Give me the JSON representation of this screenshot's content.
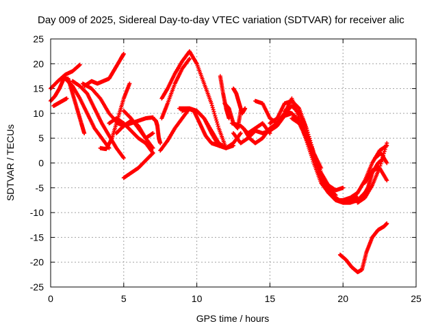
{
  "chart_data": {
    "type": "scatter",
    "title": "Day 009 of 2025, Sidereal Day-to-day VTEC variation (SDTVAR) for receiver alic",
    "xlabel": "GPS time / hours",
    "ylabel": "SDTVAR / TECUs",
    "xlim": [
      0,
      25
    ],
    "ylim": [
      -25,
      25
    ],
    "xticks": [
      0,
      5,
      10,
      15,
      20,
      25
    ],
    "yticks": [
      -25,
      -20,
      -15,
      -10,
      -5,
      0,
      5,
      10,
      15,
      20,
      25
    ],
    "grid": true,
    "marker": "+",
    "color": "#ff0000",
    "series": [
      {
        "x": [
          0.0,
          0.3,
          0.6,
          0.9,
          1.2,
          1.5,
          1.8,
          2.1,
          2.3
        ],
        "y": [
          12.5,
          13.5,
          15.0,
          17.0,
          17.0,
          14.0,
          11.0,
          8.0,
          6.0
        ]
      },
      {
        "x": [
          0.0,
          0.5,
          1.0,
          1.5,
          2.0
        ],
        "y": [
          15.0,
          16.5,
          17.8,
          18.5,
          19.8
        ]
      },
      {
        "x": [
          0.2,
          0.5,
          0.8,
          1.1
        ],
        "y": [
          11.5,
          12.0,
          12.5,
          13.0
        ]
      },
      {
        "x": [
          1.0,
          1.5,
          2.0,
          2.5,
          3.0,
          3.5,
          4.0
        ],
        "y": [
          17.0,
          15.5,
          13.0,
          10.0,
          7.0,
          5.0,
          3.0
        ]
      },
      {
        "x": [
          1.5,
          2.0,
          2.5,
          3.0,
          3.5,
          4.0,
          4.5,
          5.0
        ],
        "y": [
          16.5,
          15.5,
          14.0,
          11.0,
          8.0,
          5.5,
          3.0,
          1.0
        ]
      },
      {
        "x": [
          2.2,
          2.8,
          3.4,
          4.0,
          4.6,
          5.0,
          5.5,
          6.0,
          6.5,
          7.0
        ],
        "y": [
          16.0,
          15.0,
          13.0,
          10.0,
          8.0,
          7.5,
          8.0,
          8.5,
          9.0,
          9.2
        ]
      },
      {
        "x": [
          2.3,
          2.8,
          3.2,
          3.6,
          4.0,
          4.4,
          4.8,
          5.0
        ],
        "y": [
          15.5,
          16.5,
          16.0,
          16.5,
          17.0,
          19.0,
          21.0,
          22.0
        ]
      },
      {
        "x": [
          3.4,
          3.8,
          4.2,
          4.6,
          5.0,
          5.4
        ],
        "y": [
          3.0,
          2.8,
          5.0,
          9.0,
          13.0,
          16.0
        ]
      },
      {
        "x": [
          4.0,
          4.5,
          5.0,
          5.5,
          6.0,
          6.5,
          7.0
        ],
        "y": [
          8.0,
          9.0,
          8.0,
          6.5,
          5.0,
          4.0,
          2.0
        ]
      },
      {
        "x": [
          4.5,
          5.0,
          5.5,
          6.0,
          6.5,
          7.0
        ],
        "y": [
          6.0,
          7.5,
          8.5,
          7.5,
          5.0,
          3.0
        ]
      },
      {
        "x": [
          5.0,
          5.5,
          6.0,
          6.5,
          7.0
        ],
        "y": [
          -3.0,
          -2.0,
          -1.0,
          0.5,
          2.0
        ]
      },
      {
        "x": [
          5.0,
          5.5,
          6.0,
          6.5,
          7.0
        ],
        "y": [
          10.5,
          9.0,
          7.0,
          5.0,
          6.0
        ]
      },
      {
        "x": [
          7.0,
          7.2,
          7.3,
          7.4,
          7.5
        ],
        "y": [
          9.0,
          8.5,
          7.5,
          5.0,
          4.0
        ]
      },
      {
        "x": [
          7.5,
          8.0,
          8.5,
          9.0,
          9.5,
          10.0,
          10.5,
          11.0,
          11.5,
          12.0,
          12.5,
          13.0
        ],
        "y": [
          2.5,
          4.5,
          7.0,
          9.0,
          11.0,
          10.5,
          9.0,
          6.5,
          4.0,
          3.0,
          4.0,
          6.0
        ]
      },
      {
        "x": [
          7.6,
          8.0,
          8.5,
          9.0,
          9.5,
          10.0,
          10.5,
          11.0,
          11.5,
          12.0
        ],
        "y": [
          13.0,
          15.0,
          18.0,
          20.5,
          22.5,
          20.0,
          16.0,
          12.0,
          7.0,
          3.0
        ]
      },
      {
        "x": [
          7.6,
          8.0,
          8.5,
          9.0,
          9.5
        ],
        "y": [
          9.0,
          12.0,
          16.0,
          19.0,
          21.0
        ]
      },
      {
        "x": [
          8.8,
          9.5,
          10.0,
          10.5,
          11.0,
          11.5,
          12.0,
          12.5
        ],
        "y": [
          11.0,
          11.0,
          10.5,
          9.0,
          6.0,
          3.5,
          3.0,
          3.5
        ]
      },
      {
        "x": [
          9.0,
          9.4,
          9.8,
          10.2,
          10.6,
          11.0,
          11.5,
          12.0
        ],
        "y": [
          10.5,
          11.0,
          10.5,
          8.0,
          5.5,
          4.0,
          3.5,
          3.0
        ]
      },
      {
        "x": [
          11.6,
          11.8,
          12.0,
          12.2
        ],
        "y": [
          17.5,
          14.0,
          11.0,
          9.0
        ]
      },
      {
        "x": [
          11.9,
          12.2,
          12.5,
          12.8,
          13.0
        ],
        "y": [
          12.0,
          11.0,
          8.0,
          7.0,
          10.5
        ]
      },
      {
        "x": [
          12.5,
          12.7,
          12.9,
          13.1,
          13.3
        ],
        "y": [
          15.0,
          14.0,
          12.0,
          10.0,
          11.0
        ]
      },
      {
        "x": [
          12.5,
          13.0,
          13.5,
          14.0,
          14.5,
          15.0,
          15.5,
          16.0,
          16.5
        ],
        "y": [
          6.0,
          4.0,
          5.0,
          6.5,
          6.0,
          6.5,
          7.5,
          9.5,
          10.0
        ]
      },
      {
        "x": [
          12.4,
          13.0,
          13.5,
          14.0,
          14.5,
          15.0
        ],
        "y": [
          8.0,
          7.5,
          6.0,
          7.0,
          8.0,
          6.0
        ]
      },
      {
        "x": [
          13.2,
          13.6,
          14.0,
          14.5,
          15.0,
          15.5,
          16.0,
          16.5,
          17.0,
          17.5,
          18.0,
          18.5
        ],
        "y": [
          7.0,
          5.0,
          4.0,
          5.0,
          7.0,
          8.0,
          10.0,
          11.5,
          10.0,
          6.0,
          2.0,
          -1.0
        ]
      },
      {
        "x": [
          14.0,
          14.5,
          15.0,
          15.5,
          16.0,
          16.5,
          17.0,
          17.5,
          18.0,
          18.5,
          19.0,
          19.5
        ],
        "y": [
          12.5,
          12.0,
          9.0,
          8.0,
          10.0,
          13.0,
          9.0,
          5.0,
          2.0,
          -2.0,
          -5.0,
          -6.5
        ]
      },
      {
        "x": [
          15.0,
          15.5,
          16.0,
          16.5,
          17.0,
          17.5,
          18.0,
          18.5,
          19.0,
          19.5,
          20.0,
          20.5,
          21.0
        ],
        "y": [
          8.0,
          9.0,
          12.0,
          12.5,
          11.0,
          7.0,
          2.0,
          -3.0,
          -6.0,
          -7.5,
          -7.5,
          -7.0,
          -6.0
        ]
      },
      {
        "x": [
          16.0,
          16.5,
          17.0,
          17.5,
          18.0,
          18.5,
          19.0,
          19.5,
          20.0,
          20.5,
          21.0
        ],
        "y": [
          10.5,
          10.0,
          8.5,
          4.5,
          0.0,
          -4.0,
          -6.0,
          -7.0,
          -8.0,
          -7.5,
          -7.0
        ]
      },
      {
        "x": [
          16.5,
          17.0,
          17.5,
          18.0,
          18.5,
          19.0,
          19.5,
          20.0,
          20.5,
          21.0,
          21.5
        ],
        "y": [
          9.0,
          8.0,
          5.0,
          1.0,
          -3.0,
          -5.5,
          -7.5,
          -8.0,
          -8.0,
          -7.5,
          -6.0
        ]
      },
      {
        "x": [
          17.0,
          17.5,
          18.0,
          18.5,
          19.0,
          19.5,
          20.0
        ],
        "y": [
          10.5,
          7.0,
          2.0,
          -2.0,
          -4.5,
          -5.5,
          -5.0
        ]
      },
      {
        "x": [
          20.5,
          21.0,
          21.5,
          22.0,
          22.5,
          23.0
        ],
        "y": [
          -7.5,
          -6.0,
          -3.5,
          0.0,
          2.5,
          3.5
        ]
      },
      {
        "x": [
          21.0,
          21.5,
          22.0,
          22.5,
          23.0
        ],
        "y": [
          -8.0,
          -7.0,
          -4.5,
          -1.0,
          4.0
        ]
      },
      {
        "x": [
          21.3,
          21.7,
          22.0,
          22.4,
          22.8
        ],
        "y": [
          -7.0,
          -5.0,
          -2.0,
          0.0,
          1.0
        ]
      },
      {
        "x": [
          21.5,
          22.0,
          22.5,
          23.0
        ],
        "y": [
          -4.0,
          -1.5,
          -1.0,
          -3.5
        ]
      },
      {
        "x": [
          22.2,
          22.6,
          23.0
        ],
        "y": [
          1.0,
          2.0,
          0.0
        ]
      },
      {
        "x": [
          19.8,
          20.2,
          20.6,
          21.0,
          21.3,
          21.6,
          22.0,
          22.4,
          22.8,
          23.0
        ],
        "y": [
          -18.5,
          -19.5,
          -21.0,
          -22.0,
          -21.5,
          -18.0,
          -15.0,
          -13.5,
          -12.8,
          -12.2
        ]
      }
    ]
  }
}
